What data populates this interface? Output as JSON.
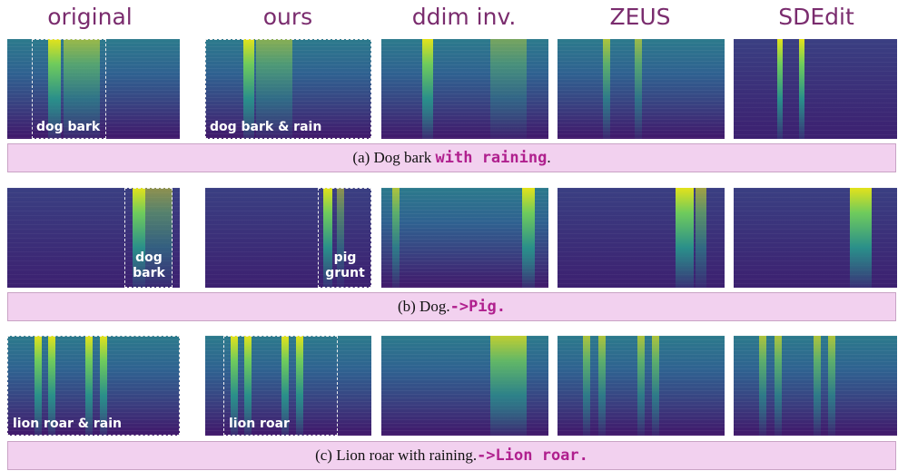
{
  "headers": [
    "original",
    "ours",
    "ddim inv.",
    "ZEUS",
    "SDEdit"
  ],
  "rows": [
    {
      "labels": [
        "dog bark",
        "dog bark & rain"
      ],
      "caption": {
        "prefix": "(a) Dog bark ",
        "edit": "with raining",
        "suffix": "."
      }
    },
    {
      "labels": [
        "dog bark",
        "pig grunt"
      ],
      "caption": {
        "prefix": "(b) Dog.",
        "edit": "->Pig."
      }
    },
    {
      "labels": [
        "lion roar & rain",
        "lion roar"
      ],
      "caption": {
        "prefix": "(c) Lion roar with raining.",
        "edit": "->Lion roar."
      }
    }
  ]
}
